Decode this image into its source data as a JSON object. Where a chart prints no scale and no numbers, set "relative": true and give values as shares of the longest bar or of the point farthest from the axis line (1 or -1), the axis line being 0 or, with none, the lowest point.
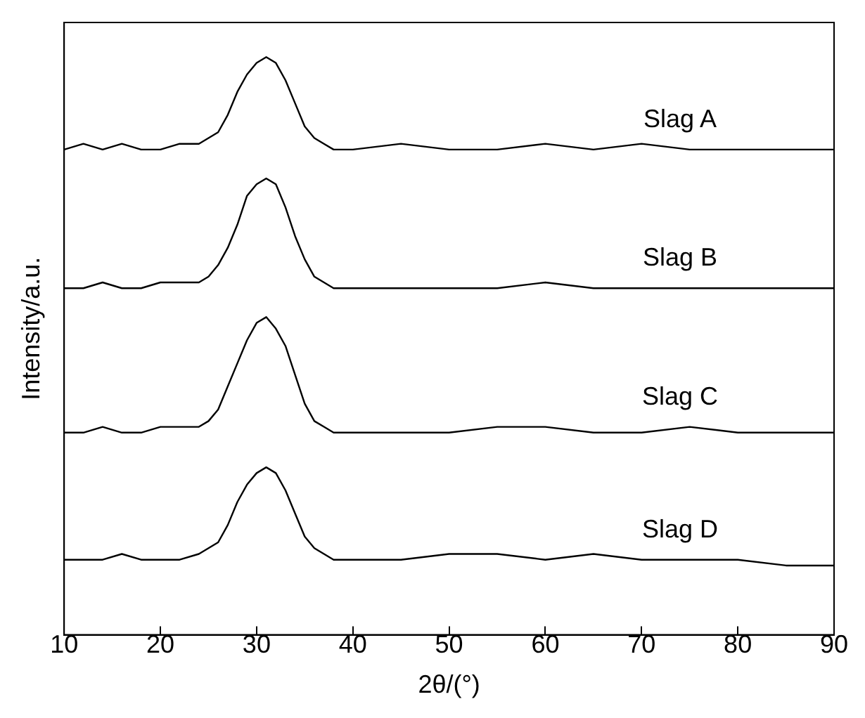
{
  "chart_data": {
    "type": "line",
    "xlabel": "2θ/(°)",
    "ylabel": "Intensity/a.u.",
    "relative": true,
    "grid": false,
    "legend": false,
    "marker": "none",
    "line_style": "solid",
    "xlim": [
      10,
      90
    ],
    "xticks": [
      10,
      20,
      30,
      40,
      50,
      60,
      70,
      80,
      90
    ],
    "x": [
      10,
      12,
      14,
      16,
      18,
      20,
      22,
      24,
      25,
      26,
      27,
      28,
      29,
      30,
      31,
      32,
      33,
      34,
      35,
      36,
      37,
      38,
      40,
      45,
      50,
      55,
      60,
      65,
      70,
      75,
      80,
      85,
      90
    ],
    "series": [
      {
        "name": "Slag A",
        "color": "#000000",
        "values": [
          0.84,
          0.85,
          0.84,
          0.85,
          0.84,
          0.84,
          0.85,
          0.85,
          0.86,
          0.87,
          0.9,
          0.94,
          0.97,
          0.99,
          1.0,
          0.99,
          0.96,
          0.92,
          0.88,
          0.86,
          0.85,
          0.84,
          0.84,
          0.85,
          0.84,
          0.84,
          0.85,
          0.84,
          0.85,
          0.84,
          0.84,
          0.84,
          0.84
        ]
      },
      {
        "name": "Slag B",
        "color": "#000000",
        "values": [
          0.6,
          0.6,
          0.61,
          0.6,
          0.6,
          0.61,
          0.61,
          0.61,
          0.62,
          0.64,
          0.67,
          0.71,
          0.76,
          0.78,
          0.79,
          0.78,
          0.74,
          0.69,
          0.65,
          0.62,
          0.61,
          0.6,
          0.6,
          0.6,
          0.6,
          0.6,
          0.61,
          0.6,
          0.6,
          0.6,
          0.6,
          0.6,
          0.6
        ]
      },
      {
        "name": "Slag C",
        "color": "#000000",
        "values": [
          0.35,
          0.35,
          0.36,
          0.35,
          0.35,
          0.36,
          0.36,
          0.36,
          0.37,
          0.39,
          0.43,
          0.47,
          0.51,
          0.54,
          0.55,
          0.53,
          0.5,
          0.45,
          0.4,
          0.37,
          0.36,
          0.35,
          0.35,
          0.35,
          0.35,
          0.36,
          0.36,
          0.35,
          0.35,
          0.36,
          0.35,
          0.35,
          0.35
        ]
      },
      {
        "name": "Slag D",
        "color": "#000000",
        "values": [
          0.13,
          0.13,
          0.13,
          0.14,
          0.13,
          0.13,
          0.13,
          0.14,
          0.15,
          0.16,
          0.19,
          0.23,
          0.26,
          0.28,
          0.29,
          0.28,
          0.25,
          0.21,
          0.17,
          0.15,
          0.14,
          0.13,
          0.13,
          0.13,
          0.14,
          0.14,
          0.13,
          0.14,
          0.13,
          0.13,
          0.13,
          0.12,
          0.12
        ]
      }
    ]
  }
}
